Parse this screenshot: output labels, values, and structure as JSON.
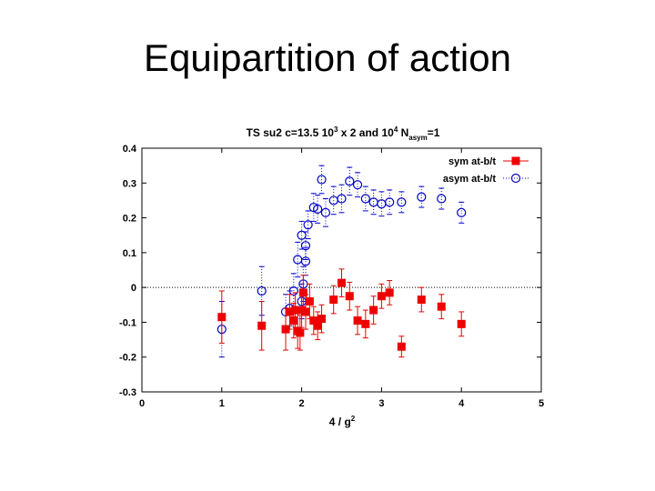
{
  "slide": {
    "title": "Equipartition of action"
  },
  "chart_data": {
    "type": "scatter",
    "title_parts": {
      "a": "TS su2 c=13.5 10",
      "b": "3",
      "c": " x 2  and 10",
      "d": "4",
      "e": " N",
      "f": "asym",
      "g": "=1"
    },
    "xlabel_parts": {
      "a": "4 / g",
      "b": "2"
    },
    "ylabel": "",
    "xlim": [
      0,
      5
    ],
    "ylim": [
      -0.3,
      0.4
    ],
    "xticks": [
      "0",
      "1",
      "2",
      "3",
      "4",
      "5"
    ],
    "yticks": [
      "-0.3",
      "-0.2",
      "-0.1",
      "0",
      "0.1",
      "0.2",
      "0.3",
      "0.4"
    ],
    "reference_line_y": 0,
    "legend_position": "top-right",
    "series": [
      {
        "name": "sym at-b/t",
        "color": "#ee0000",
        "marker": "filled-square",
        "points": [
          {
            "x": 1.0,
            "y": -0.085,
            "err": 0.075
          },
          {
            "x": 1.5,
            "y": -0.11,
            "err": 0.07
          },
          {
            "x": 1.8,
            "y": -0.12,
            "err": 0.06
          },
          {
            "x": 1.85,
            "y": -0.07,
            "err": 0.05
          },
          {
            "x": 1.9,
            "y": -0.095,
            "err": 0.05
          },
          {
            "x": 1.92,
            "y": -0.065,
            "err": 0.05
          },
          {
            "x": 1.95,
            "y": -0.125,
            "err": 0.05
          },
          {
            "x": 1.98,
            "y": -0.13,
            "err": 0.05
          },
          {
            "x": 2.0,
            "y": -0.065,
            "err": 0.05
          },
          {
            "x": 2.02,
            "y": -0.015,
            "err": 0.05
          },
          {
            "x": 2.05,
            "y": -0.07,
            "err": 0.05
          },
          {
            "x": 2.1,
            "y": -0.04,
            "err": 0.05
          },
          {
            "x": 2.15,
            "y": -0.095,
            "err": 0.04
          },
          {
            "x": 2.2,
            "y": -0.11,
            "err": 0.04
          },
          {
            "x": 2.25,
            "y": -0.09,
            "err": 0.04
          },
          {
            "x": 2.4,
            "y": -0.035,
            "err": 0.04
          },
          {
            "x": 2.5,
            "y": 0.013,
            "err": 0.04
          },
          {
            "x": 2.6,
            "y": -0.025,
            "err": 0.04
          },
          {
            "x": 2.7,
            "y": -0.095,
            "err": 0.04
          },
          {
            "x": 2.8,
            "y": -0.105,
            "err": 0.04
          },
          {
            "x": 2.9,
            "y": -0.065,
            "err": 0.04
          },
          {
            "x": 3.0,
            "y": -0.025,
            "err": 0.035
          },
          {
            "x": 3.1,
            "y": -0.015,
            "err": 0.035
          },
          {
            "x": 3.25,
            "y": -0.17,
            "err": 0.03
          },
          {
            "x": 3.5,
            "y": -0.035,
            "err": 0.035
          },
          {
            "x": 3.75,
            "y": -0.055,
            "err": 0.035
          },
          {
            "x": 4.0,
            "y": -0.105,
            "err": 0.035
          }
        ]
      },
      {
        "name": "asym at-b/t",
        "color": "#0000cc",
        "marker": "open-circle",
        "points": [
          {
            "x": 1.0,
            "y": -0.12,
            "err": 0.08
          },
          {
            "x": 1.5,
            "y": -0.01,
            "err": 0.07
          },
          {
            "x": 1.8,
            "y": -0.07,
            "err": 0.05
          },
          {
            "x": 1.85,
            "y": -0.06,
            "err": 0.05
          },
          {
            "x": 1.9,
            "y": -0.01,
            "err": 0.05
          },
          {
            "x": 1.95,
            "y": 0.08,
            "err": 0.05
          },
          {
            "x": 2.0,
            "y": -0.04,
            "err": 0.05
          },
          {
            "x": 2.0,
            "y": 0.15,
            "err": 0.04
          },
          {
            "x": 2.02,
            "y": 0.01,
            "err": 0.05
          },
          {
            "x": 2.05,
            "y": 0.075,
            "err": 0.04
          },
          {
            "x": 2.05,
            "y": 0.12,
            "err": 0.04
          },
          {
            "x": 2.08,
            "y": 0.18,
            "err": 0.04
          },
          {
            "x": 2.15,
            "y": 0.23,
            "err": 0.04
          },
          {
            "x": 2.2,
            "y": 0.225,
            "err": 0.04
          },
          {
            "x": 2.25,
            "y": 0.31,
            "err": 0.04
          },
          {
            "x": 2.3,
            "y": 0.215,
            "err": 0.04
          },
          {
            "x": 2.4,
            "y": 0.25,
            "err": 0.04
          },
          {
            "x": 2.5,
            "y": 0.255,
            "err": 0.04
          },
          {
            "x": 2.6,
            "y": 0.305,
            "err": 0.04
          },
          {
            "x": 2.7,
            "y": 0.295,
            "err": 0.035
          },
          {
            "x": 2.8,
            "y": 0.255,
            "err": 0.035
          },
          {
            "x": 2.9,
            "y": 0.245,
            "err": 0.035
          },
          {
            "x": 3.0,
            "y": 0.24,
            "err": 0.035
          },
          {
            "x": 3.1,
            "y": 0.245,
            "err": 0.035
          },
          {
            "x": 3.25,
            "y": 0.245,
            "err": 0.03
          },
          {
            "x": 3.5,
            "y": 0.26,
            "err": 0.03
          },
          {
            "x": 3.75,
            "y": 0.255,
            "err": 0.03
          },
          {
            "x": 4.0,
            "y": 0.215,
            "err": 0.03
          }
        ]
      }
    ]
  }
}
